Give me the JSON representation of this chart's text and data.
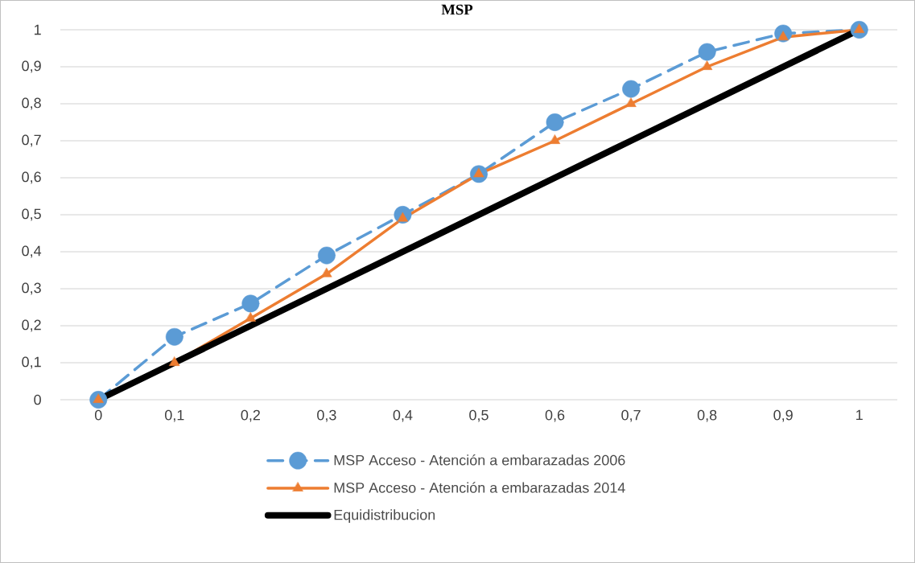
{
  "chart_data": {
    "type": "line",
    "title": "MSP",
    "categories": [
      "0",
      "0,1",
      "0,2",
      "0,3",
      "0,4",
      "0,5",
      "0,6",
      "0,7",
      "0,8",
      "0,9",
      "1"
    ],
    "series": [
      {
        "name": "MSP Acceso - Atención a embarazadas 2006",
        "color": "#5b9bd5",
        "marker": "circle",
        "line_style": "dashed",
        "values": [
          0,
          0.17,
          0.26,
          0.39,
          0.5,
          0.61,
          0.75,
          0.84,
          0.94,
          0.99,
          1
        ]
      },
      {
        "name": "MSP Acceso - Atención a embarazadas 2014",
        "color": "#ed7d31",
        "marker": "triangle",
        "line_style": "solid",
        "values": [
          0,
          0.1,
          0.22,
          0.34,
          0.49,
          0.61,
          0.7,
          0.8,
          0.9,
          0.98,
          1
        ]
      },
      {
        "name": "Equidistribucion",
        "color": "#000000",
        "marker": "none",
        "line_style": "solid",
        "values": [
          0,
          0.1,
          0.2,
          0.3,
          0.4,
          0.5,
          0.6,
          0.7,
          0.8,
          0.9,
          1
        ]
      }
    ],
    "ylim": [
      0,
      1
    ],
    "yticks": [
      0,
      {
        "value": 0.1,
        "label": "0,1"
      },
      {
        "value": 0.2,
        "label": "0,2"
      },
      {
        "value": 0.3,
        "label": "0,3"
      },
      {
        "value": 0.4,
        "label": "0,4"
      },
      {
        "value": 0.5,
        "label": "0,5"
      },
      {
        "value": 0.6,
        "label": "0,6"
      },
      {
        "value": 0.7,
        "label": "0,7"
      },
      {
        "value": 0.8,
        "label": "0,8"
      },
      {
        "value": 0.9,
        "label": "0,9"
      },
      1
    ],
    "grid": "y",
    "legend": "bottom"
  }
}
